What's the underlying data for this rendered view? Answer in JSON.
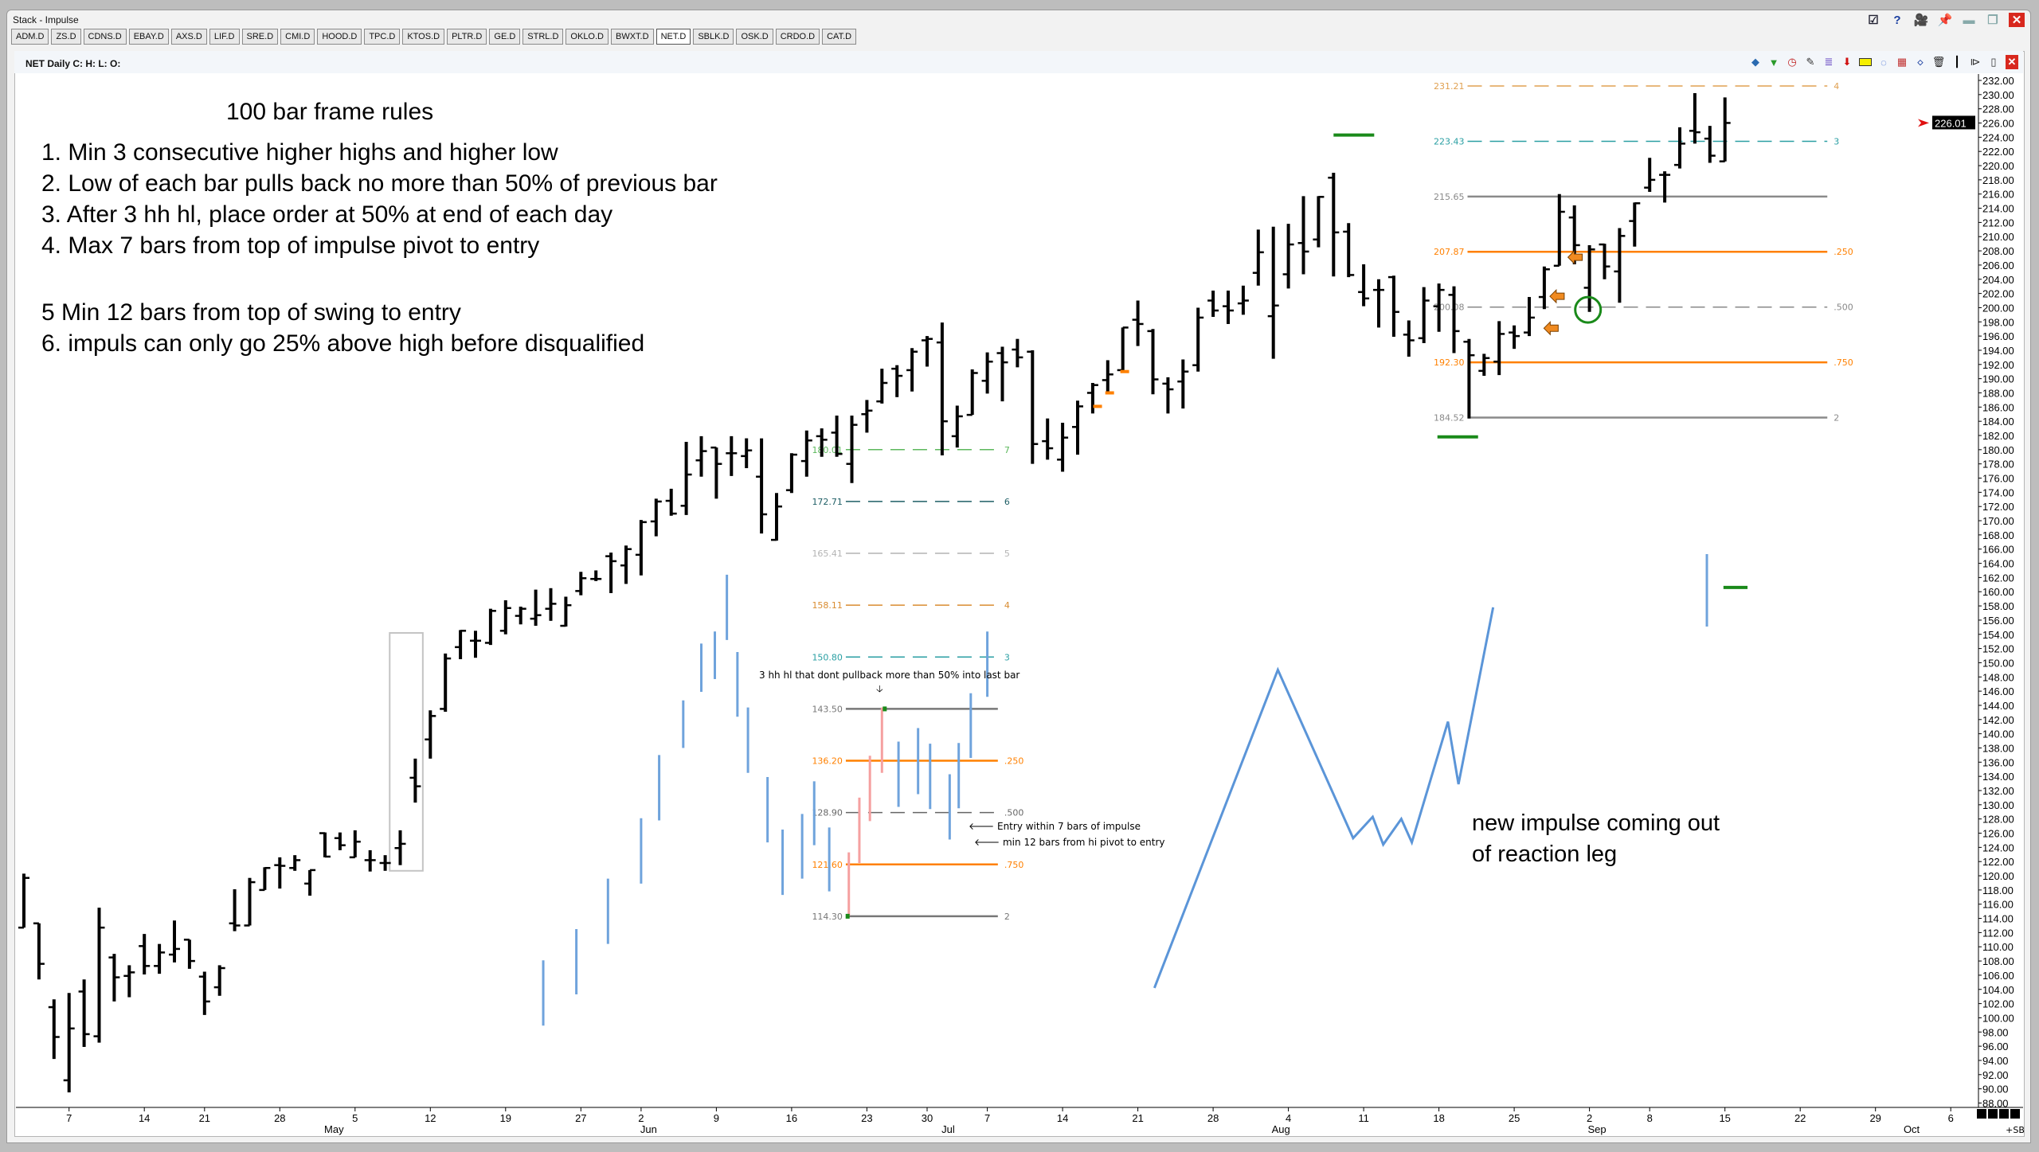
{
  "window": {
    "title": "Stack - Impulse",
    "buttons": [
      "checklist-icon",
      "help-icon",
      "camera-icon",
      "pin-icon",
      "minimize-icon",
      "restore-icon",
      "close-icon"
    ]
  },
  "tabs": [
    "ADM.D",
    "ZS.D",
    "CDNS.D",
    "EBAY.D",
    "AXS.D",
    "LIF.D",
    "SRE.D",
    "CMI.D",
    "HOOD.D",
    "TPC.D",
    "KTOS.D",
    "PLTR.D",
    "GE.D",
    "STRL.D",
    "OKLO.D",
    "BWXT.D",
    "NET.D",
    "SBLK.D",
    "OSK.D",
    "CRDO.D",
    "CAT.D"
  ],
  "active_tab": "NET.D",
  "chart_header": "NET Daily C: H: L: O:",
  "toolbar_icons": [
    "layers-icon",
    "filter-icon",
    "clock-icon",
    "pencil-icon",
    "fib-lines-icon",
    "down-arrow-icon",
    "highlight-icon",
    "circle-tool-icon",
    "grid-icon",
    "reset-icon",
    "trash-icon",
    "bar-style-icon",
    "mirror-icon",
    "candle-icon",
    "close-chart-icon"
  ],
  "annotations": {
    "rules_title": "100 bar frame rules",
    "rules": [
      "1. Min 3 consecutive higher highs and higher low",
      "2. Low of each bar pulls back no more than 50% of previous bar",
      "3. After 3 hh hl, place order at 50% at end of each day",
      "4. Max 7 bars from top of impulse pivot to entry",
      "",
      "5 Min 12 bars from top of swing to entry",
      "6. impuls can only go 25% above high before disqualified"
    ],
    "hh_note": "3 hh hl that dont pullback more than 50% into last bar",
    "hh_arrow": "🡣",
    "entry_note": "🡐 Entry within 7 bars of impulse",
    "pivot_note": "🡐 min 12 bars from hi pivot to entry",
    "impulse_note_1": "new impulse coming out",
    "impulse_note_2": "of reaction leg"
  },
  "chart_data": {
    "type": "ohlc",
    "symbol": "NET",
    "interval": "Daily",
    "ylim": [
      88,
      232
    ],
    "ytick_step": 2,
    "last_price": "226.01",
    "bars_ohlc": [
      [
        112.7,
        120.3,
        112.7,
        119.7
      ],
      [
        113.3,
        113.3,
        105.4,
        107.6
      ],
      [
        101.5,
        102.6,
        94.2,
        97.3
      ],
      [
        91.2,
        103.5,
        89.5,
        98.5
      ],
      [
        103.7,
        105.4,
        95.9,
        97.7
      ],
      [
        97.4,
        115.5,
        96.5,
        112.7
      ],
      [
        108.5,
        109,
        102.3,
        105.7
      ],
      [
        105.9,
        107.4,
        102.9,
        106.4
      ],
      [
        110.1,
        111.8,
        106.1,
        107.3
      ],
      [
        107.3,
        110.4,
        106.2,
        109.2
      ],
      [
        108.9,
        113.7,
        107.8,
        109.7
      ],
      [
        111,
        111,
        106.9,
        108
      ],
      [
        105.8,
        106.5,
        100.4,
        102.3
      ],
      [
        104.3,
        107.4,
        103.1,
        107
      ],
      [
        113.3,
        118.1,
        112.2,
        113
      ],
      [
        113,
        119.7,
        113,
        119.1
      ],
      [
        118,
        121.2,
        118,
        121.1
      ],
      [
        121.5,
        122.6,
        118.2,
        121.4
      ],
      [
        121.1,
        122.9,
        120.7,
        122.2
      ],
      [
        118.9,
        120.8,
        117.2,
        120.8
      ],
      [
        126,
        126.1,
        122.6,
        122.7
      ],
      [
        125.3,
        126.1,
        123.6,
        124.3
      ],
      [
        122.6,
        126.4,
        122.6,
        124.8
      ],
      [
        122.2,
        123.6,
        120.6,
        122.2
      ],
      [
        121.8,
        122.9,
        120.7,
        121.8
      ],
      [
        123.9,
        126.4,
        121.5,
        124.5
      ],
      [
        133.8,
        136.5,
        130.3,
        132.6
      ],
      [
        139.2,
        143.3,
        136.5,
        142.5
      ],
      [
        143.5,
        151.3,
        143.1,
        150.6
      ],
      [
        152.2,
        154.6,
        150.5,
        154.5
      ],
      [
        153.1,
        154.5,
        150.7,
        153.1
      ],
      [
        152.8,
        157.6,
        152.5,
        157.3
      ],
      [
        154.5,
        158.8,
        154,
        157.7
      ],
      [
        156.6,
        157.9,
        155.4,
        157.6
      ],
      [
        156.2,
        160.3,
        155.2,
        156.7
      ],
      [
        157.6,
        160.5,
        155.9,
        158.3
      ],
      [
        155.2,
        159.3,
        155.1,
        158.1
      ],
      [
        160.1,
        162.8,
        159.5,
        161.9
      ],
      [
        161.8,
        163,
        161.5,
        161.8
      ],
      [
        165,
        165.5,
        159.8,
        164.3
      ],
      [
        163.7,
        166.5,
        161.1,
        166
      ],
      [
        165.2,
        170.1,
        162.3,
        169.8
      ],
      [
        169.9,
        173.1,
        167.8,
        172.7
      ],
      [
        172.8,
        174.5,
        170.7,
        171
      ],
      [
        172.1,
        181.1,
        170.8,
        176.5
      ],
      [
        178.5,
        181.9,
        176.2,
        179.8
      ],
      [
        180.3,
        180.3,
        173.1,
        178
      ],
      [
        179.5,
        181.9,
        176.3,
        179.5
      ],
      [
        179.1,
        181.6,
        177.4,
        179.9
      ],
      [
        176.2,
        181.6,
        168.2,
        170.9
      ],
      [
        167.3,
        173.9,
        167.2,
        172
      ],
      [
        174.3,
        179.5,
        173.9,
        179.3
      ],
      [
        178.4,
        182.7,
        176.2,
        181.3
      ],
      [
        181.9,
        183,
        179,
        181.4
      ],
      [
        182.4,
        184.8,
        179,
        179.4
      ],
      [
        178,
        184.8,
        175.3,
        183.5
      ],
      [
        185,
        187,
        182.4,
        185.5
      ],
      [
        186.8,
        191.4,
        186.5,
        189.4
      ],
      [
        191.4,
        191.9,
        187.4,
        190.4
      ],
      [
        191.2,
        194.3,
        188.2,
        193.8
      ],
      [
        195.4,
        196,
        191.7,
        195.6
      ],
      [
        195.1,
        197.9,
        179.2,
        184
      ],
      [
        181.9,
        186.2,
        180.3,
        184.7
      ],
      [
        184.9,
        191.3,
        184.9,
        190.8
      ],
      [
        189.7,
        193.7,
        187.9,
        192.4
      ],
      [
        193.6,
        194.5,
        186.8,
        192.3
      ],
      [
        194.1,
        195.6,
        191.6,
        193
      ],
      [
        193.8,
        194,
        178,
        180.8
      ],
      [
        181.2,
        184.4,
        178.6,
        180.2
      ],
      [
        178.6,
        183.8,
        176.9,
        181.7
      ],
      [
        183.2,
        186.9,
        179.3,
        186.1
      ],
      [
        188,
        189.4,
        185.1,
        189.1
      ],
      [
        189.8,
        192.6,
        188.2,
        190.6
      ],
      [
        191.2,
        197.2,
        191,
        197.2
      ],
      [
        198.3,
        201,
        194.6,
        197.7
      ],
      [
        196.7,
        197,
        187.8,
        189.9
      ],
      [
        189.3,
        190.2,
        185.1,
        188.5
      ],
      [
        189.6,
        192.7,
        185.8,
        191
      ],
      [
        191.9,
        200,
        191,
        198.6
      ],
      [
        201,
        202.4,
        198.7,
        199.6
      ],
      [
        200.2,
        202.4,
        197.7,
        199.6
      ],
      [
        200.6,
        203.1,
        199,
        201
      ],
      [
        204.9,
        211,
        203.1,
        207.8
      ],
      [
        198.8,
        211.4,
        192.8,
        200.3
      ],
      [
        204.7,
        211.8,
        202.7,
        208.9
      ],
      [
        209.1,
        215.7,
        204.7,
        207.9
      ],
      [
        209.6,
        215.7,
        208.5,
        215.6
      ],
      [
        218.3,
        219,
        204.4,
        210.6
      ],
      [
        210.7,
        211.9,
        204.3,
        204.6
      ],
      [
        202.2,
        206.1,
        200.2,
        201.3
      ],
      [
        202.5,
        204,
        197.2,
        202.5
      ],
      [
        204.3,
        204.5,
        195.9,
        199.4
      ],
      [
        196.2,
        198.2,
        193.1,
        195.4
      ],
      [
        195.7,
        202.9,
        195,
        201
      ],
      [
        200.2,
        203.4,
        196.6,
        202.5
      ],
      [
        201.8,
        203,
        193.6,
        196.7
      ],
      [
        195.2,
        195.6,
        184.4,
        193.3
      ],
      [
        191.1,
        193.5,
        190.4,
        192.9
      ],
      [
        192.4,
        198.1,
        190.5,
        196.3
      ],
      [
        196.5,
        197.5,
        194.2,
        196
      ],
      [
        196.5,
        201.5,
        196,
        198.6
      ],
      [
        201.5,
        205.8,
        199.8,
        205.4
      ],
      [
        205.9,
        216,
        205.9,
        213.5
      ],
      [
        212.7,
        214.4,
        206.1,
        208.8
      ],
      [
        202.8,
        208.8,
        199.4,
        208.2
      ],
      [
        208.9,
        209,
        204,
        205.8
      ],
      [
        205.1,
        211.2,
        200.7,
        210.1
      ],
      [
        212.2,
        214.8,
        208.6,
        214.7
      ],
      [
        216.9,
        221.1,
        216.3,
        218
      ],
      [
        218.7,
        219.2,
        214.8,
        218.7
      ],
      [
        220.1,
        225.4,
        219.6,
        223.1
      ],
      [
        224.9,
        230.2,
        223.1,
        224.7
      ],
      [
        223.8,
        225.6,
        220.4,
        221.4
      ],
      [
        220.6,
        229.6,
        220.6,
        226.01
      ]
    ],
    "x_ticks": [
      {
        "label": "7",
        "bar": 4
      },
      {
        "label": "14",
        "bar": 9
      },
      {
        "label": "21",
        "bar": 13
      },
      {
        "label": "28",
        "bar": 18
      },
      {
        "label": "5",
        "bar": 23
      },
      {
        "label": "12",
        "bar": 28
      },
      {
        "label": "19",
        "bar": 33
      },
      {
        "label": "27",
        "bar": 38
      },
      {
        "label": "2",
        "bar": 42
      },
      {
        "label": "9",
        "bar": 47
      },
      {
        "label": "16",
        "bar": 52
      },
      {
        "label": "23",
        "bar": 57
      },
      {
        "label": "30",
        "bar": 61
      },
      {
        "label": "7",
        "bar": 65
      },
      {
        "label": "14",
        "bar": 70
      },
      {
        "label": "21",
        "bar": 75
      },
      {
        "label": "28",
        "bar": 80
      },
      {
        "label": "4",
        "bar": 85
      },
      {
        "label": "11",
        "bar": 90
      },
      {
        "label": "18",
        "bar": 95
      },
      {
        "label": "25",
        "bar": 100
      },
      {
        "label": "2",
        "bar": 105
      },
      {
        "label": "8",
        "bar": 109
      },
      {
        "label": "15",
        "bar": 114
      },
      {
        "label": "22",
        "bar": 119
      },
      {
        "label": "29",
        "bar": 124
      },
      {
        "label": "6",
        "bar": 129
      }
    ],
    "months": [
      {
        "label": "May",
        "bar": 21.6
      },
      {
        "label": "Jun",
        "bar": 42.5
      },
      {
        "label": "Jul",
        "bar": 62.4
      },
      {
        "label": "Aug",
        "bar": 84.5
      },
      {
        "label": "Sep",
        "bar": 105.5
      },
      {
        "label": "Oct",
        "bar": 126.4
      }
    ],
    "corner_label": "+SB",
    "fib_sets": [
      {
        "from_bar": 55.6,
        "to_bar": 65.7,
        "levels": [
          {
            "price": "180.01",
            "tag": "7",
            "color": "#5cb85c",
            "dash": true
          },
          {
            "price": "172.71",
            "tag": "6",
            "color": "#1f5f66",
            "dash": true
          },
          {
            "price": "165.41",
            "tag": "5",
            "color": "#b4b4b4",
            "dash": true
          },
          {
            "price": "158.11",
            "tag": "4",
            "color": "#d98c30",
            "dash": true
          },
          {
            "price": "150.80",
            "tag": "3",
            "color": "#2a9fa3",
            "dash": true
          },
          {
            "price": "143.50",
            "tag": "",
            "color": "#777777",
            "dash": false
          },
          {
            "price": "136.20",
            "tag": ".250",
            "color": "#ff8000",
            "dash": false
          },
          {
            "price": "128.90",
            "tag": ".500",
            "color": "#666666",
            "dash": true
          },
          {
            "price": "121.60",
            "tag": ".750",
            "color": "#ff8000",
            "dash": false
          },
          {
            "price": "114.30",
            "tag": "2",
            "color": "#777777",
            "dash": false
          }
        ]
      },
      {
        "from_bar": 96.9,
        "to_bar": 120.8,
        "levels": [
          {
            "price": "231.21",
            "tag": "4",
            "color": "#e0a050",
            "dash": true
          },
          {
            "price": "223.43",
            "tag": "3",
            "color": "#2a9fa3",
            "dash": true
          },
          {
            "price": "215.65",
            "tag": "",
            "color": "#8a8a8a",
            "dash": false
          },
          {
            "price": "207.87",
            "tag": ".250",
            "color": "#ff8000",
            "dash": false
          },
          {
            "price": "200.08",
            "tag": ".500",
            "color": "#888888",
            "dash": true
          },
          {
            "price": "192.30",
            "tag": ".750",
            "color": "#ff8000",
            "dash": false
          },
          {
            "price": "184.52",
            "tag": "2",
            "color": "#8a8a8a",
            "dash": false
          }
        ]
      }
    ],
    "example_bars": [
      {
        "bar": 35.5,
        "h": 108.1,
        "l": 98.9,
        "color": "#6fa3dc"
      },
      {
        "bar": 37.7,
        "h": 112.5,
        "l": 103.3,
        "color": "#6fa3dc"
      },
      {
        "bar": 39.8,
        "h": 119.6,
        "l": 110.4,
        "color": "#6fa3dc"
      },
      {
        "bar": 42,
        "h": 128.1,
        "l": 118.9,
        "color": "#6fa3dc"
      },
      {
        "bar": 43.2,
        "h": 137,
        "l": 127.8,
        "color": "#6fa3dc"
      },
      {
        "bar": 44.8,
        "h": 144.7,
        "l": 138,
        "color": "#6fa3dc"
      },
      {
        "bar": 46,
        "h": 152.7,
        "l": 145.9,
        "color": "#6fa3dc"
      },
      {
        "bar": 46.9,
        "h": 154.4,
        "l": 147.7,
        "color": "#6fa3dc"
      },
      {
        "bar": 47.7,
        "h": 162.4,
        "l": 153.2,
        "color": "#6fa3dc"
      },
      {
        "bar": 48.4,
        "h": 151.5,
        "l": 142.4,
        "color": "#6fa3dc"
      },
      {
        "bar": 49.1,
        "h": 143.7,
        "l": 134.5,
        "color": "#6fa3dc"
      },
      {
        "bar": 50.4,
        "h": 133.9,
        "l": 124.7,
        "color": "#6fa3dc"
      },
      {
        "bar": 51.4,
        "h": 126.5,
        "l": 117.3,
        "color": "#6fa3dc"
      },
      {
        "bar": 52.7,
        "h": 128.7,
        "l": 119.6,
        "color": "#6fa3dc"
      },
      {
        "bar": 53.5,
        "h": 133.3,
        "l": 124.3,
        "color": "#6fa3dc"
      },
      {
        "bar": 54.5,
        "h": 126.8,
        "l": 117.8,
        "color": "#6fa3dc"
      },
      {
        "bar": 55.8,
        "h": 123.3,
        "l": 114.3,
        "color": "#f5a0a0"
      },
      {
        "bar": 56.5,
        "h": 131,
        "l": 121.8,
        "color": "#f5a0a0"
      },
      {
        "bar": 57.2,
        "h": 136.9,
        "l": 127.7,
        "color": "#f5a0a0"
      },
      {
        "bar": 58,
        "h": 143.7,
        "l": 134.5,
        "color": "#f5a0a0"
      },
      {
        "bar": 59.1,
        "h": 138.9,
        "l": 129.7,
        "color": "#6fa3dc"
      },
      {
        "bar": 60.4,
        "h": 140.8,
        "l": 131.5,
        "color": "#6fa3dc"
      },
      {
        "bar": 61.2,
        "h": 138.6,
        "l": 129.4,
        "color": "#6fa3dc"
      },
      {
        "bar": 62.5,
        "h": 134.3,
        "l": 125.1,
        "color": "#6fa3dc"
      },
      {
        "bar": 63.1,
        "h": 138.7,
        "l": 129.5,
        "color": "#6fa3dc"
      },
      {
        "bar": 63.9,
        "h": 145.7,
        "l": 136.6,
        "color": "#6fa3dc"
      },
      {
        "bar": 65,
        "h": 154.4,
        "l": 145.2,
        "color": "#6fa3dc"
      },
      {
        "bar": 112.8,
        "h": 165.3,
        "l": 155.1,
        "color": "#6fa3dc"
      }
    ],
    "impulse_path": [
      [
        76.1,
        104.2
      ],
      [
        84.3,
        149.0
      ],
      [
        89.3,
        125.3
      ],
      [
        90.6,
        128.3
      ],
      [
        91.3,
        124.4
      ],
      [
        92.5,
        128.0
      ],
      [
        93.2,
        124.7
      ],
      [
        95.6,
        141.7
      ],
      [
        96.3,
        132.9
      ],
      [
        98.6,
        157.8
      ]
    ],
    "green_dashes": [
      [
        88,
        90.7,
        224.3
      ],
      [
        94.9,
        97.6,
        181.8
      ],
      [
        113.9,
        115.5,
        160.6
      ]
    ],
    "orange_dashes": [
      [
        72.3,
        186.1
      ],
      [
        73.1,
        188.0
      ],
      [
        74.1,
        191.0
      ]
    ],
    "orange_arrows": [
      [
        102.9,
        201.6
      ],
      [
        102.5,
        197.1
      ],
      [
        104.1,
        207.1
      ]
    ],
    "entry_circle": {
      "bar": 104.9,
      "price": 199.7
    },
    "highlight_box": {
      "from_bar": 25.3,
      "to_bar": 27.5,
      "high": 154.2,
      "low": 120.7
    }
  }
}
